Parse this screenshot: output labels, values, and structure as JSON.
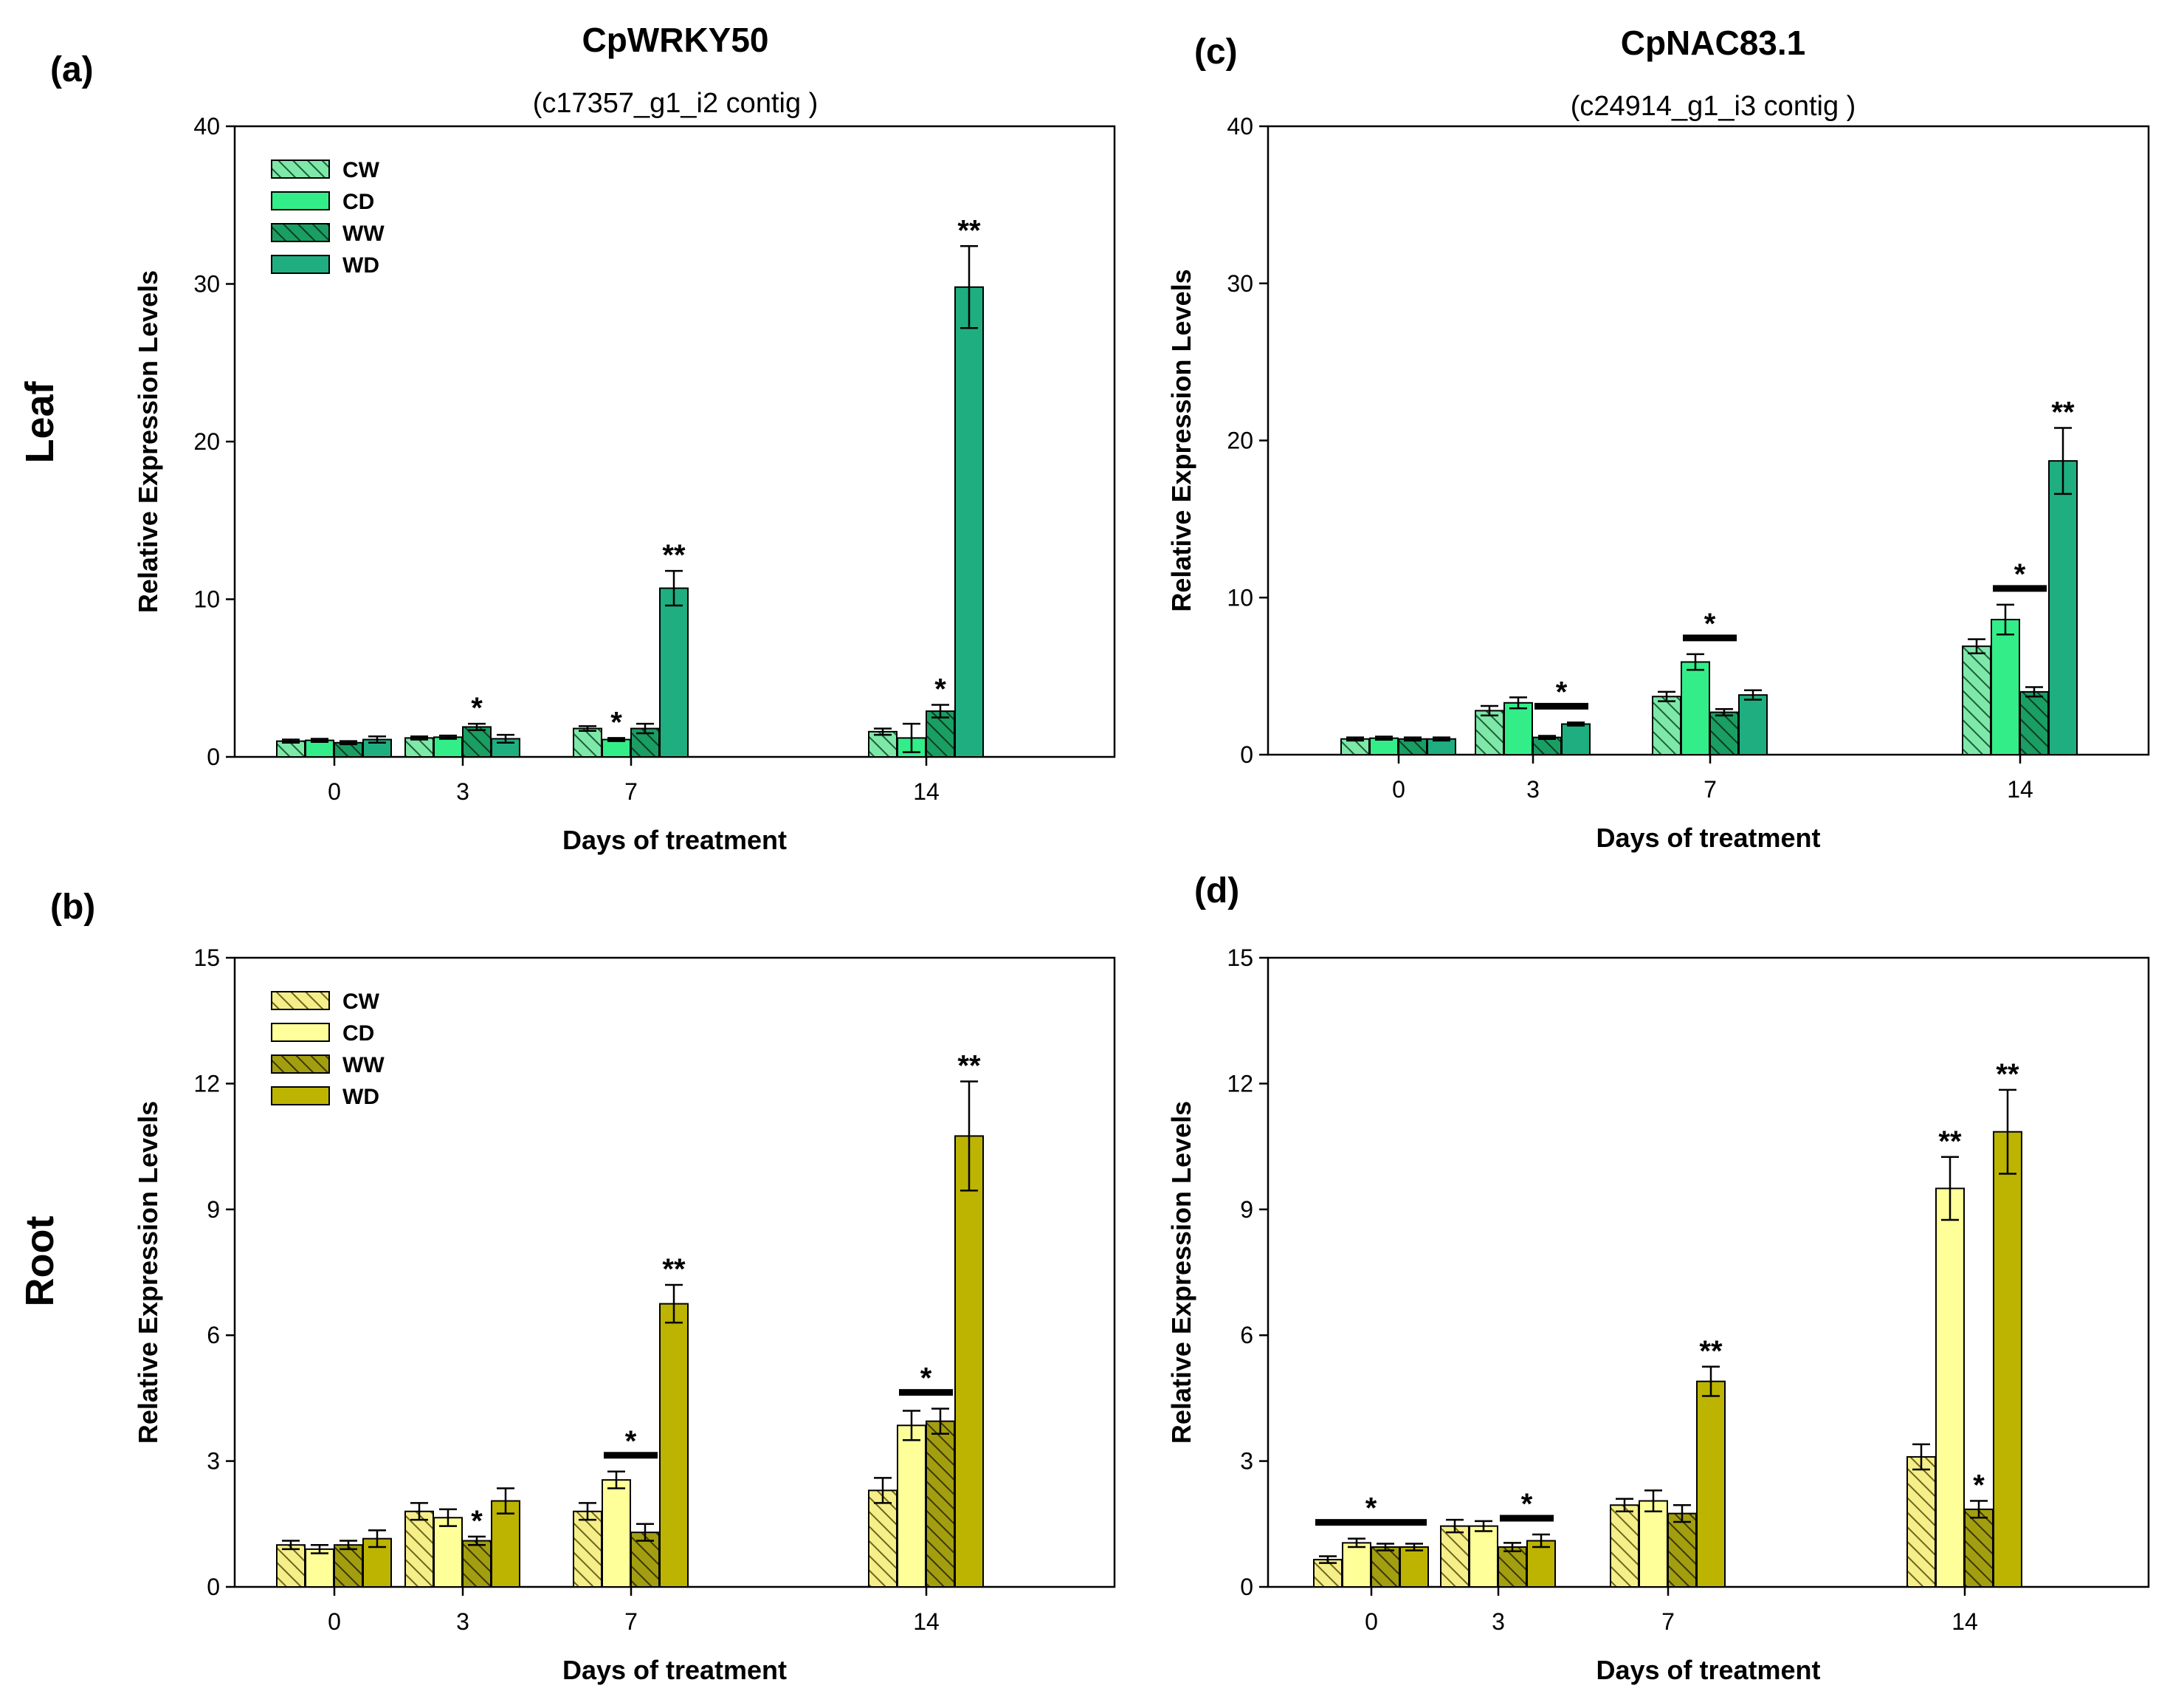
{
  "figure": {
    "row_labels": [
      "Leaf",
      "Root"
    ],
    "gene_titles": [
      "CpWRKY50",
      "CpNAC83.1"
    ],
    "contig_labels": [
      "(c17357_g1_i2 contig )",
      "(c24914_g1_i3 contig )"
    ]
  },
  "colors": {
    "leaf": [
      "#7ee8a8",
      "#33ee88",
      "#1a9e62",
      "#1fae80"
    ],
    "root": [
      "#f6ee88",
      "#ffff99",
      "#a29e10",
      "#bcb400"
    ]
  },
  "chart_data": [
    {
      "panel": "(a)",
      "type": "bar",
      "palette": "leaf",
      "title": "CpWRKY50",
      "subtitle": "(c17357_g1_i2 contig )",
      "xlabel": "Days of treatment",
      "ylabel": "Relative Expression Levels",
      "ylim": [
        0,
        40
      ],
      "yticks": [
        0,
        10,
        20,
        30,
        40
      ],
      "categories": [
        "0",
        "3",
        "7",
        "14"
      ],
      "legend": "top-left",
      "series": [
        {
          "name": "CW",
          "hatched": true,
          "values": [
            1.0,
            1.2,
            1.8,
            1.6
          ],
          "errors": [
            0.1,
            0.1,
            0.15,
            0.2
          ]
        },
        {
          "name": "CD",
          "hatched": false,
          "values": [
            1.05,
            1.25,
            1.1,
            1.2
          ],
          "errors": [
            0.1,
            0.1,
            0.1,
            0.9
          ]
        },
        {
          "name": "WW",
          "hatched": true,
          "values": [
            0.9,
            1.9,
            1.8,
            2.9
          ],
          "errors": [
            0.1,
            0.2,
            0.3,
            0.4
          ]
        },
        {
          "name": "WD",
          "hatched": false,
          "values": [
            1.1,
            1.15,
            10.7,
            29.8
          ],
          "errors": [
            0.2,
            0.25,
            1.1,
            2.6
          ]
        }
      ],
      "annotations": [
        {
          "text": "*",
          "x_group": 1,
          "series": 2
        },
        {
          "text": "*",
          "x_group": 2,
          "series": 1
        },
        {
          "text": "**",
          "x_group": 2,
          "series": 3
        },
        {
          "text": "*",
          "x_group": 3,
          "series": 2
        },
        {
          "text": "**",
          "x_group": 3,
          "series": 3
        }
      ]
    },
    {
      "panel": "(b)",
      "type": "bar",
      "palette": "root",
      "xlabel": "Days of treatment",
      "ylabel": "Relative Expression Levels",
      "ylim": [
        0,
        15
      ],
      "yticks": [
        0,
        3,
        6,
        9,
        12,
        15
      ],
      "categories": [
        "0",
        "3",
        "7",
        "14"
      ],
      "legend": "top-left",
      "series": [
        {
          "name": "CW",
          "hatched": true,
          "values": [
            1.0,
            1.8,
            1.8,
            2.3
          ],
          "errors": [
            0.1,
            0.2,
            0.2,
            0.3
          ]
        },
        {
          "name": "CD",
          "hatched": false,
          "values": [
            0.9,
            1.65,
            2.55,
            3.85
          ],
          "errors": [
            0.1,
            0.2,
            0.2,
            0.35
          ]
        },
        {
          "name": "WW",
          "hatched": true,
          "values": [
            1.0,
            1.1,
            1.3,
            3.95
          ],
          "errors": [
            0.1,
            0.1,
            0.2,
            0.3
          ]
        },
        {
          "name": "WD",
          "hatched": false,
          "values": [
            1.15,
            2.05,
            6.75,
            10.75
          ],
          "errors": [
            0.2,
            0.3,
            0.45,
            1.3
          ]
        }
      ],
      "annotations": [
        {
          "text": "*",
          "x_group": 1,
          "series": 2
        },
        {
          "text": "*",
          "x_group": 2,
          "line_from": 1,
          "line_to": 2
        },
        {
          "text": "**",
          "x_group": 2,
          "series": 3
        },
        {
          "text": "*",
          "x_group": 3,
          "line_from": 1,
          "line_to": 2
        },
        {
          "text": "**",
          "x_group": 3,
          "series": 3
        }
      ]
    },
    {
      "panel": "(c)",
      "type": "bar",
      "palette": "leaf",
      "title": "CpNAC83.1",
      "subtitle": "(c24914_g1_i3 contig )",
      "xlabel": "Days of treatment",
      "ylabel": "Relative Expression Levels",
      "ylim": [
        0,
        40
      ],
      "yticks": [
        0,
        10,
        20,
        30,
        40
      ],
      "categories": [
        "0",
        "3",
        "7",
        "14"
      ],
      "legend": "none",
      "series": [
        {
          "name": "CW",
          "hatched": true,
          "values": [
            1.0,
            2.8,
            3.7,
            6.9
          ],
          "errors": [
            0.1,
            0.3,
            0.3,
            0.45
          ]
        },
        {
          "name": "CD",
          "hatched": false,
          "values": [
            1.05,
            3.3,
            5.9,
            8.6
          ],
          "errors": [
            0.1,
            0.35,
            0.5,
            0.95
          ]
        },
        {
          "name": "WW",
          "hatched": true,
          "values": [
            1.0,
            1.1,
            2.7,
            4.0
          ],
          "errors": [
            0.1,
            0.1,
            0.2,
            0.3
          ]
        },
        {
          "name": "WD",
          "hatched": false,
          "values": [
            1.0,
            1.95,
            3.8,
            18.7
          ],
          "errors": [
            0.1,
            0.1,
            0.3,
            2.1
          ]
        }
      ],
      "annotations": [
        {
          "text": "*",
          "x_group": 1,
          "line_from": 2,
          "line_to": 3
        },
        {
          "text": "*",
          "x_group": 2,
          "line_from": 1,
          "line_to": 2
        },
        {
          "text": "*",
          "x_group": 3,
          "line_from": 1,
          "line_to": 2
        },
        {
          "text": "**",
          "x_group": 3,
          "series": 3
        }
      ]
    },
    {
      "panel": "(d)",
      "type": "bar",
      "palette": "root",
      "xlabel": "Days of treatment",
      "ylabel": "Relative Expression Levels",
      "ylim": [
        0,
        15
      ],
      "yticks": [
        0,
        3,
        6,
        9,
        12,
        15
      ],
      "categories": [
        "0",
        "3",
        "7",
        "14"
      ],
      "legend": "none",
      "series": [
        {
          "name": "CW",
          "hatched": true,
          "values": [
            0.65,
            1.45,
            1.95,
            3.1
          ],
          "errors": [
            0.08,
            0.15,
            0.15,
            0.3
          ]
        },
        {
          "name": "CD",
          "hatched": false,
          "values": [
            1.05,
            1.45,
            2.05,
            9.5
          ],
          "errors": [
            0.1,
            0.12,
            0.25,
            0.75
          ]
        },
        {
          "name": "WW",
          "hatched": true,
          "values": [
            0.95,
            0.95,
            1.75,
            1.85
          ],
          "errors": [
            0.08,
            0.1,
            0.2,
            0.2
          ]
        },
        {
          "name": "WD",
          "hatched": false,
          "values": [
            0.95,
            1.1,
            4.9,
            10.85
          ],
          "errors": [
            0.08,
            0.15,
            0.35,
            1.0
          ]
        }
      ],
      "annotations": [
        {
          "text": "*",
          "x_group": 0,
          "line_from": 0,
          "line_to": 3
        },
        {
          "text": "*",
          "x_group": 1,
          "line_from": 2,
          "line_to": 3
        },
        {
          "text": "**",
          "x_group": 2,
          "series": 3
        },
        {
          "text": "**",
          "x_group": 3,
          "series": 1
        },
        {
          "text": "*",
          "x_group": 3,
          "series": 2
        },
        {
          "text": "**",
          "x_group": 3,
          "series": 3
        }
      ]
    }
  ]
}
